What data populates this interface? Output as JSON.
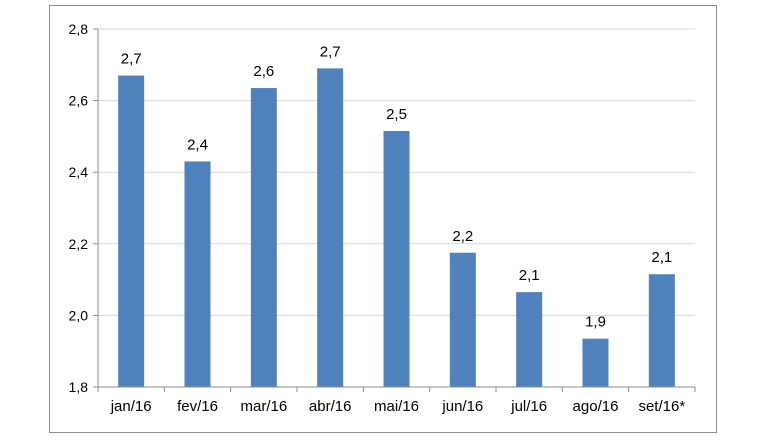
{
  "chart_data": {
    "type": "bar",
    "categories": [
      "jan/16",
      "fev/16",
      "mar/16",
      "abr/16",
      "mai/16",
      "jun/16",
      "jul/16",
      "ago/16",
      "set/16*"
    ],
    "values": [
      2.67,
      2.43,
      2.635,
      2.69,
      2.515,
      2.175,
      2.065,
      1.935,
      2.115
    ],
    "data_labels": [
      "2,7",
      "2,4",
      "2,6",
      "2,7",
      "2,5",
      "2,2",
      "2,1",
      "1,9",
      "2,1"
    ],
    "ylim": [
      1.8,
      2.8
    ],
    "yticks": [
      1.8,
      2.0,
      2.2,
      2.4,
      2.6,
      2.8
    ],
    "ytick_labels": [
      "1,8",
      "2,0",
      "2,2",
      "2,4",
      "2,6",
      "2,8"
    ],
    "title": "",
    "xlabel": "",
    "ylabel": "",
    "grid": true,
    "legend": "none",
    "colors": {
      "bar": "#4f81bd",
      "grid": "#d9d9d9",
      "axis": "#8c8c8c"
    }
  }
}
